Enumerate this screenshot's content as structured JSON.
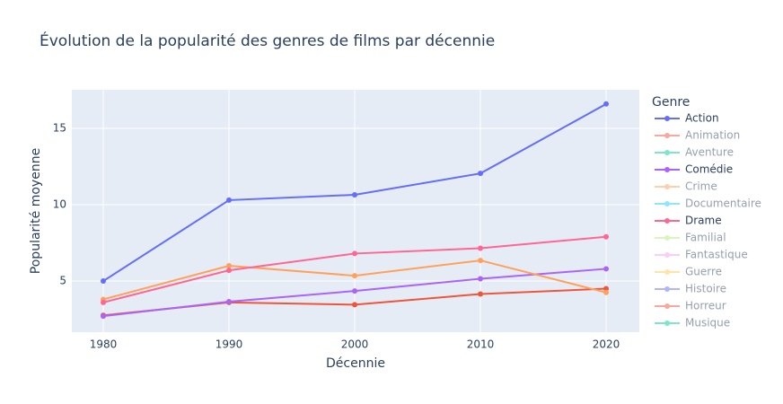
{
  "chart_data": {
    "type": "line",
    "title": "Évolution de la popularité des genres de films par décennie",
    "x_label": "Décennie",
    "y_label": "Popularité moyenne",
    "legend_title": "Genre",
    "x": [
      1980,
      1990,
      2000,
      2010,
      2020
    ],
    "xlim": [
      1977.5,
      2022.64
    ],
    "xticks": [
      1980,
      1990,
      2000,
      2010,
      2020
    ],
    "ylim": [
      1.65,
      17.53
    ],
    "yticks": [
      5,
      10,
      15
    ],
    "grid": true,
    "legend_position": "right",
    "series": [
      {
        "name": "Action",
        "color": "#636efa",
        "values": [
          5.0,
          10.3,
          10.65,
          12.05,
          16.6
        ]
      },
      {
        "name": "Animation",
        "color": "#ef553b",
        "dimmed": true,
        "values": [
          2.75,
          3.6,
          3.45,
          4.15,
          4.5
        ]
      },
      {
        "name": "Aventure",
        "color": "#00cc96",
        "dimmed": true
      },
      {
        "name": "Comédie",
        "color": "#ab63fa",
        "values": [
          2.7,
          3.65,
          4.35,
          5.15,
          5.8
        ]
      },
      {
        "name": "Crime",
        "color": "#ffa15a",
        "dimmed": true,
        "values": [
          3.8,
          6.0,
          5.35,
          6.35,
          4.25
        ]
      },
      {
        "name": "Documentaire",
        "color": "#19d3f3",
        "dimmed": true
      },
      {
        "name": "Drame",
        "color": "#ff6692",
        "values": [
          3.6,
          5.7,
          6.8,
          7.15,
          7.9
        ]
      },
      {
        "name": "Familial",
        "color": "#b6e880",
        "dimmed": true
      },
      {
        "name": "Fantastique",
        "color": "#ff97ff",
        "dimmed": true
      },
      {
        "name": "Guerre",
        "color": "#fecb52",
        "dimmed": true
      },
      {
        "name": "Histoire",
        "color": "#636efa",
        "dimmed": true
      },
      {
        "name": "Horreur",
        "color": "#ef553b",
        "dimmed": true
      },
      {
        "name": "Musique",
        "color": "#00cc96",
        "dimmed": true
      }
    ]
  }
}
